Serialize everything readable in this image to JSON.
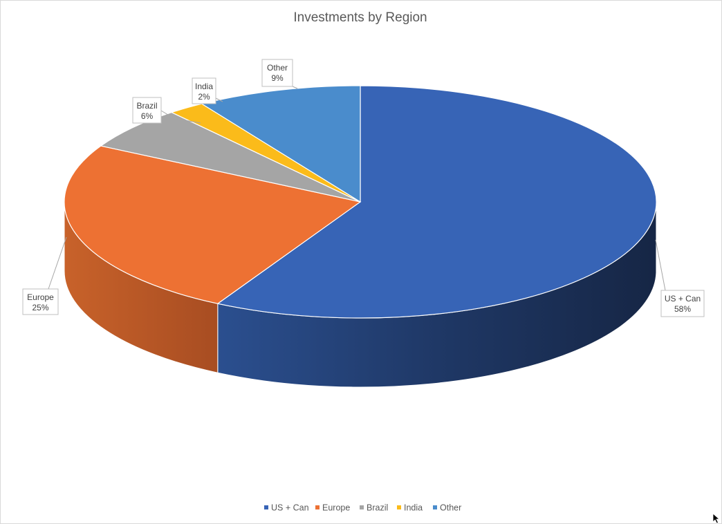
{
  "chart_data": {
    "type": "pie",
    "title": "Investments by Region",
    "categories": [
      "US + Can",
      "Europe",
      "Brazil",
      "India",
      "Other"
    ],
    "values": [
      58,
      25,
      6,
      2,
      9
    ],
    "value_labels": [
      "58%",
      "25%",
      "6%",
      "2%",
      "9%"
    ],
    "colors": [
      "#3764b6",
      "#ed7133",
      "#a5a5a5",
      "#fbbb1a",
      "#4a8ccc"
    ],
    "three_d": true,
    "legend_position": "bottom",
    "data_labels": "category and percentage with leader lines"
  }
}
